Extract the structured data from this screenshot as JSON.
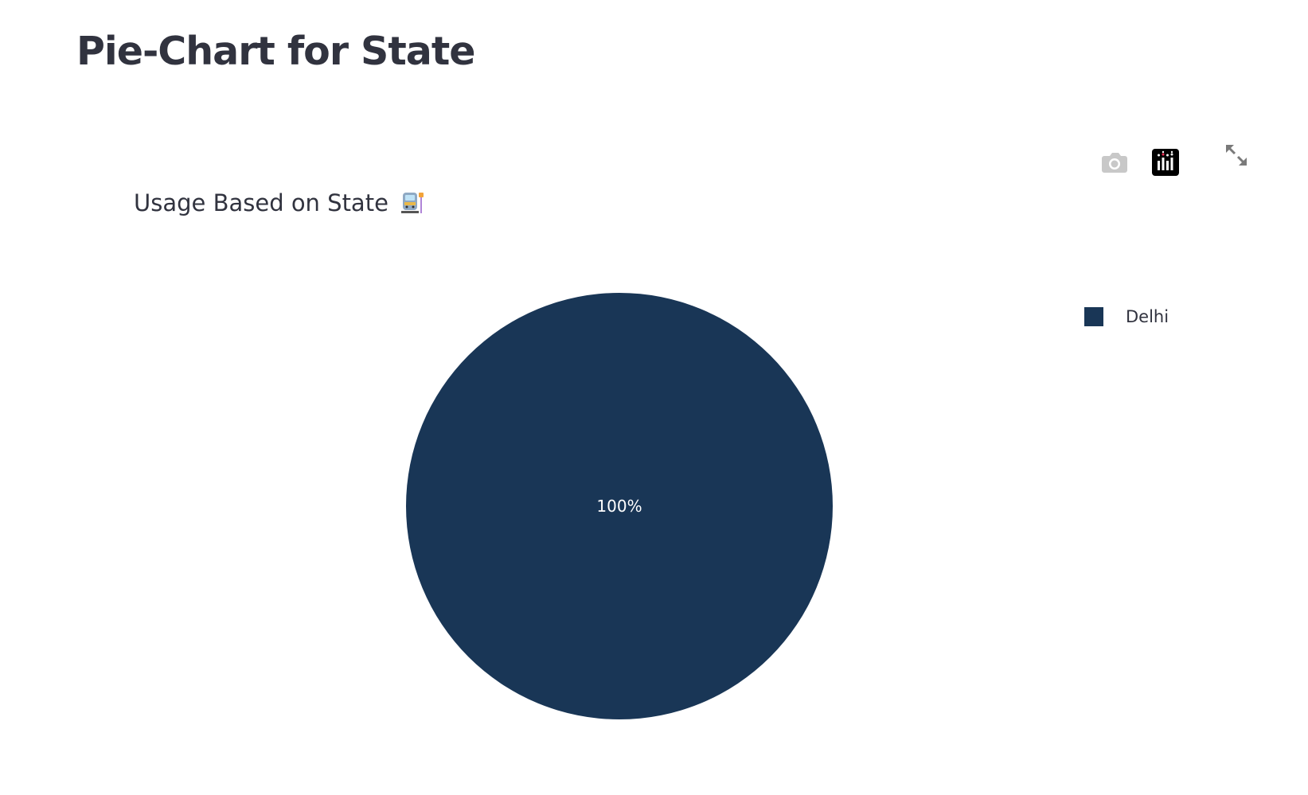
{
  "page": {
    "title": "Pie-Chart for State"
  },
  "toolbar": {
    "camera_icon": "camera-icon",
    "logo_icon": "plotly-logo-icon",
    "expand_icon": "expand-icon"
  },
  "chart_data": {
    "type": "pie",
    "title": "Usage Based on State",
    "title_emoji": "train-station-icon",
    "labels": [
      "Delhi"
    ],
    "values": [
      100
    ],
    "slice_labels": [
      "100%"
    ],
    "colors": [
      "#193656"
    ],
    "legend": {
      "placement": "right",
      "entries": [
        "Delhi"
      ]
    }
  }
}
